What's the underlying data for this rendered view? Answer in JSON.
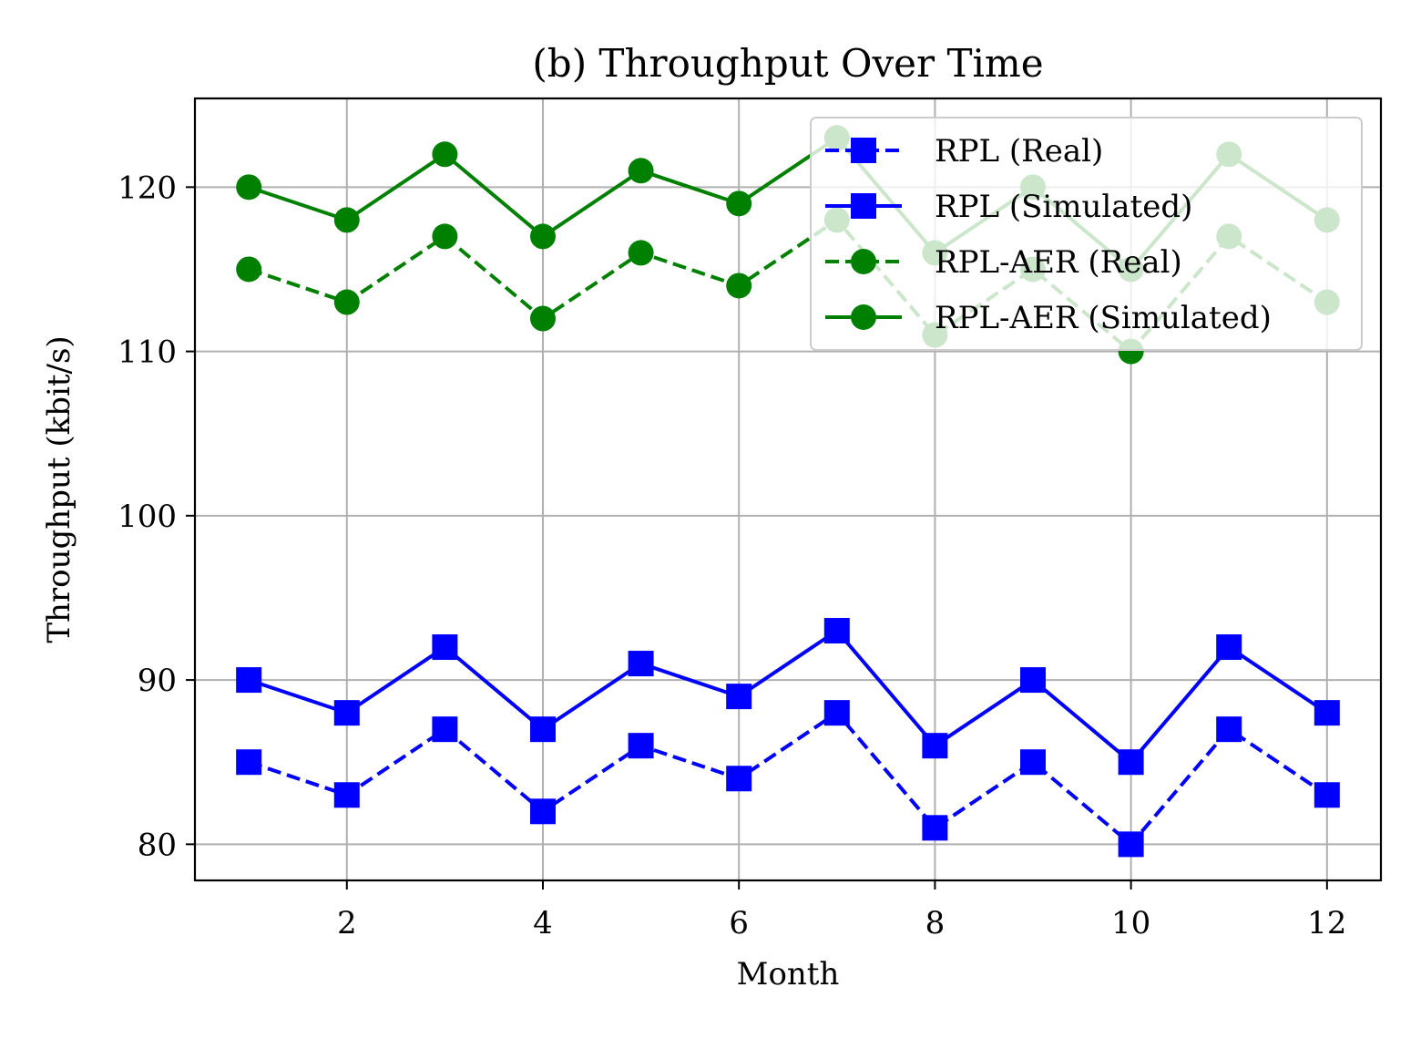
{
  "chart_data": {
    "type": "line",
    "title": "(b) Throughput Over Time",
    "xlabel": "Month",
    "ylabel": "Throughput (kbit/s)",
    "xlim": [
      0.45,
      12.55
    ],
    "ylim": [
      77.8,
      125.4
    ],
    "xticks": [
      2,
      4,
      6,
      8,
      10,
      12
    ],
    "yticks": [
      80,
      90,
      100,
      110,
      120
    ],
    "grid": true,
    "legend_position": "top-right",
    "x": [
      1,
      2,
      3,
      4,
      5,
      6,
      7,
      8,
      9,
      10,
      11,
      12
    ],
    "series": [
      {
        "name": "RPL (Real)",
        "color": "#0000ff",
        "dash": "dashed",
        "marker": "square",
        "values": [
          85,
          83,
          87,
          82,
          86,
          84,
          88,
          81,
          85,
          80,
          87,
          83
        ]
      },
      {
        "name": "RPL (Simulated)",
        "color": "#0000ff",
        "dash": "solid",
        "marker": "square",
        "values": [
          90,
          88,
          92,
          87,
          91,
          89,
          93,
          86,
          90,
          85,
          92,
          88
        ]
      },
      {
        "name": "RPL-AER (Real)",
        "color": "#008000",
        "dash": "dashed",
        "marker": "circle",
        "values": [
          115,
          113,
          117,
          112,
          116,
          114,
          118,
          111,
          115,
          110,
          117,
          113
        ]
      },
      {
        "name": "RPL-AER (Simulated)",
        "color": "#008000",
        "dash": "solid",
        "marker": "circle",
        "values": [
          120,
          118,
          122,
          117,
          121,
          119,
          123,
          116,
          120,
          115,
          122,
          118
        ]
      }
    ]
  }
}
